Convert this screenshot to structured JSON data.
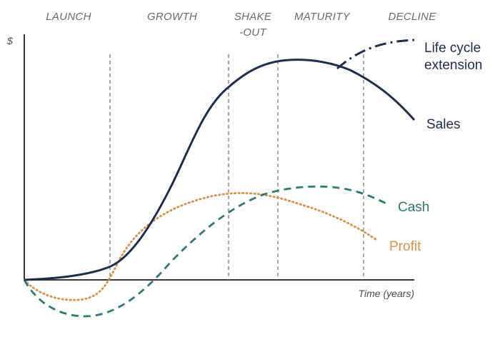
{
  "stages": [
    "LAUNCH",
    "GROWTH",
    "SHAKE",
    "-OUT",
    "MATURITY",
    "DECLINE"
  ],
  "y_axis_label": "$",
  "x_axis_label": "Time (years)",
  "labels": {
    "extension_line1": "Life cycle",
    "extension_line2": "extension",
    "sales": "Sales",
    "cash": "Cash",
    "profit": "Profit"
  },
  "colors": {
    "sales": "#1d2d4d",
    "cash": "#2a7a78",
    "profit": "#d9924a",
    "axis": "#3a3a3a",
    "divider": "#555555"
  }
}
